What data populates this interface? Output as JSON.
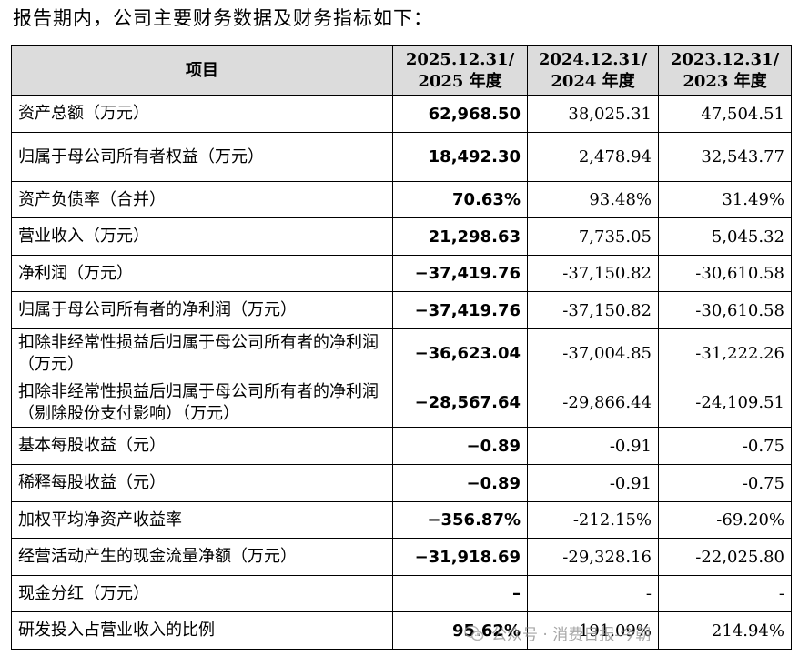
{
  "intro_text": "报告期内，公司主要财务数据及财务指标如下：",
  "table": {
    "headers": {
      "item": "项目",
      "col1": {
        "line1": "2025.12.31/",
        "line2": "2025 年度"
      },
      "col2": {
        "line1": "2024.12.31/",
        "line2": "2024 年度"
      },
      "col3": {
        "line1": "2023.12.31/",
        "line2": "2023 年度"
      }
    },
    "rows": [
      {
        "label": "资产总额（万元）",
        "v2025": "62,968.50",
        "v2024": "38,025.31",
        "v2023": "47,504.51"
      },
      {
        "label": "归属于母公司所有者权益（万元）",
        "v2025": "18,492.30",
        "v2024": "2,478.94",
        "v2023": "32,543.77"
      },
      {
        "label": "资产负债率（合并）",
        "v2025": "70.63%",
        "v2024": "93.48%",
        "v2023": "31.49%"
      },
      {
        "label": "营业收入（万元）",
        "v2025": "21,298.63",
        "v2024": "7,735.05",
        "v2023": "5,045.32"
      },
      {
        "label": "净利润（万元）",
        "v2025": "−37,419.76",
        "v2024": "-37,150.82",
        "v2023": "-30,610.58"
      },
      {
        "label": "归属于母公司所有者的净利润（万元）",
        "v2025": "−37,419.76",
        "v2024": "-37,150.82",
        "v2023": "-30,610.58"
      },
      {
        "label": "扣除非经常性损益后归属于母公司所有者的净利润（万元）",
        "v2025": "−36,623.04",
        "v2024": "-37,004.85",
        "v2023": "-31,222.26"
      },
      {
        "label": "扣除非经常性损益后归属于母公司所有者的净利润（剔除股份支付影响）（万元）",
        "v2025": "−28,567.64",
        "v2024": "-29,866.44",
        "v2023": "-24,109.51"
      },
      {
        "label": "基本每股收益（元）",
        "v2025": "−0.89",
        "v2024": "-0.91",
        "v2023": "-0.75"
      },
      {
        "label": "稀释每股收益（元）",
        "v2025": "−0.89",
        "v2024": "-0.91",
        "v2023": "-0.75"
      },
      {
        "label": "加权平均净资产收益率",
        "v2025": "−356.87%",
        "v2024": "-212.15%",
        "v2023": "-69.20%"
      },
      {
        "label": "经营活动产生的现金流量净额（万元）",
        "v2025": "−31,918.69",
        "v2024": "-29,328.16",
        "v2023": "-22,025.80"
      },
      {
        "label": "现金分红（万元）",
        "v2025": "–",
        "v2024": "-",
        "v2023": "-"
      },
      {
        "label": "研发投入占营业收入的比例",
        "v2025": "95.62%",
        "v2024": "191.09%",
        "v2023": "214.94%"
      }
    ]
  },
  "watermark_text": "公众号 · 消费日报-今朝"
}
